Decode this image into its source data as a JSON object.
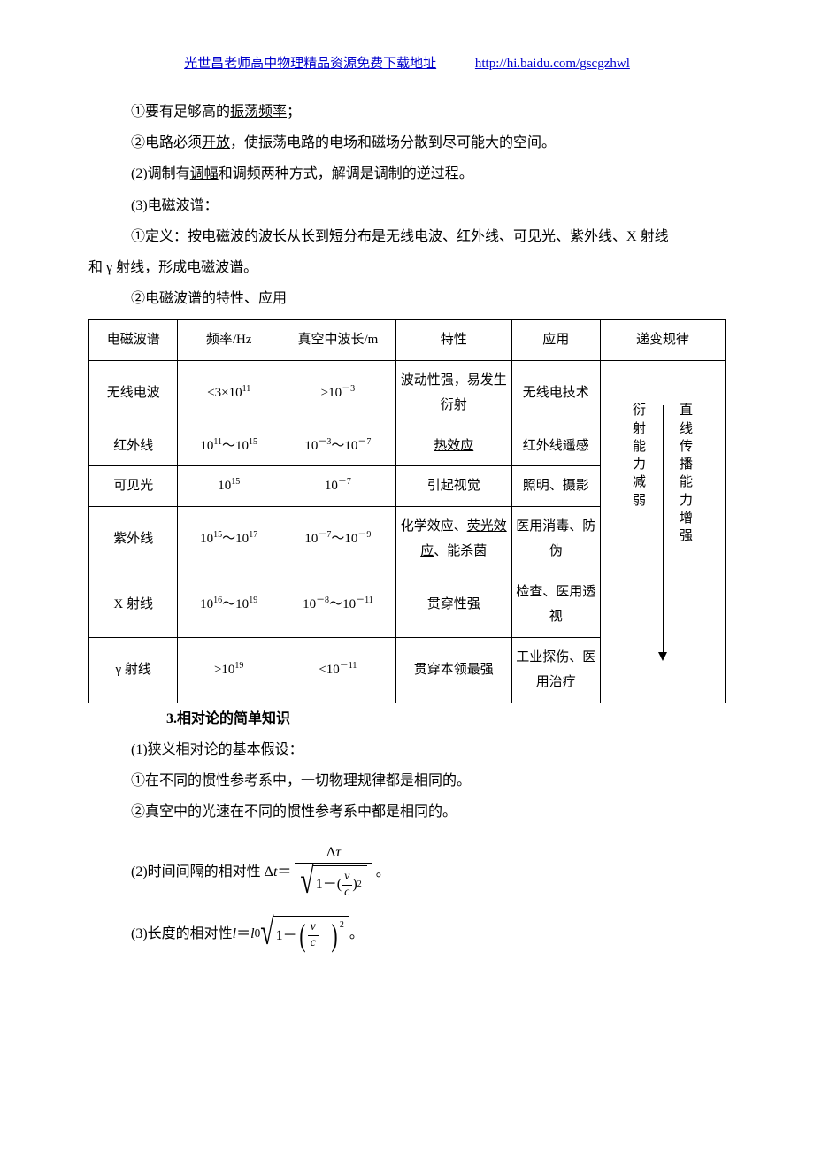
{
  "header": {
    "left": "光世昌老师高中物理精品资源免费下载地址",
    "url": "http://hi.baidu.com/gscgzhwl"
  },
  "body": {
    "p1a": "①要有足够高的",
    "p1u": "振荡频率",
    "p1b": "；",
    "p2a": "②电路必须",
    "p2u": "开放",
    "p2b": "，使振荡电路的电场和磁场分散到尽可能大的空间。",
    "p3a": "(2)调制有",
    "p3u": "调幅",
    "p3b": "和调频两种方式，解调是调制的逆过程。",
    "p4": "(3)电磁波谱：",
    "p5a": "①定义：按电磁波的波长从长到短分布是",
    "p5u": "无线电波",
    "p5b": "、红外线、可见光、紫外线、X 射线",
    "p5c": "和 γ 射线，形成电磁波谱。",
    "p6": "②电磁波谱的特性、应用"
  },
  "table": {
    "head": {
      "c0": "电磁波谱",
      "c1": "频率/Hz",
      "c2": "真空中波长/m",
      "c3": "特性",
      "c4": "应用",
      "c5": "递变规律"
    },
    "rows": [
      {
        "c0": "无线电波",
        "c1": "<3×10",
        "c1s": "11",
        "c2": ">10",
        "c2s": "－3",
        "c3": "波动性强，易发生衍射",
        "c4": "无线电技术"
      },
      {
        "c0": "红外线",
        "c1": "10",
        "c1s": "11",
        "c1m": "～10",
        "c1s2": "15",
        "c2": "10",
        "c2s": "－3",
        "c2m": "～10",
        "c2s2": "－7",
        "c3u": "热效应",
        "c4": "红外线遥感"
      },
      {
        "c0": "可见光",
        "c1": "10",
        "c1s": "15",
        "c2": "10",
        "c2s": "－7",
        "c3": "引起视觉",
        "c4": "照明、摄影"
      },
      {
        "c0": "紫外线",
        "c1": "10",
        "c1s": "15",
        "c1m": "～10",
        "c1s2": "17",
        "c2": "10",
        "c2s": "－7",
        "c2m": "～10",
        "c2s2": "－9",
        "c3a": "化学效应、",
        "c3u": "荧光效应",
        "c3b": "、能杀菌",
        "c4": "医用消毒、防伪"
      },
      {
        "c0": "X 射线",
        "c1": "10",
        "c1s": "16",
        "c1m": "～10",
        "c1s2": "19",
        "c2": "10",
        "c2s": "－8",
        "c2m": "～10",
        "c2s2": "－11",
        "c3": "贯穿性强",
        "c4": "检查、医用透视"
      },
      {
        "c0": "γ 射线",
        "c1": ">10",
        "c1s": "19",
        "c2": "<10",
        "c2s": "－11",
        "c3": "贯穿本领最强",
        "c4": "工业探伤、医用治疗"
      }
    ],
    "vleft": "衍射能力减弱",
    "vright": "直线传播能力增强"
  },
  "sec3": {
    "title": "3.相对论的简单知识",
    "p1": "(1)狭义相对论的基本假设：",
    "p2": "①在不同的惯性参考系中，一切物理规律都是相同的。",
    "p3": "②真空中的光速在不同的惯性参考系中都是相同的。",
    "f2label": "(2)时间间隔的相对性 Δ",
    "f3label": "(3)长度的相对性 "
  }
}
